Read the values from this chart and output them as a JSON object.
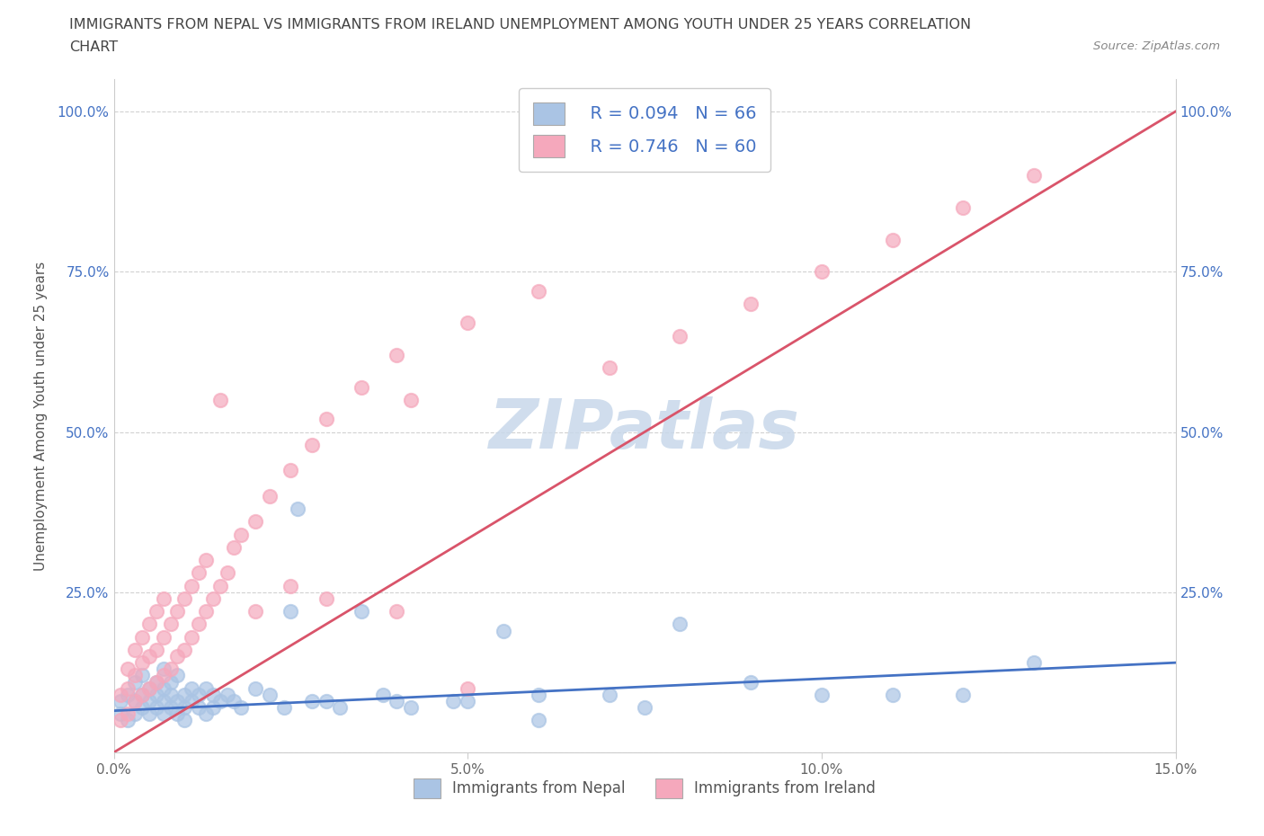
{
  "title_line1": "IMMIGRANTS FROM NEPAL VS IMMIGRANTS FROM IRELAND UNEMPLOYMENT AMONG YOUTH UNDER 25 YEARS CORRELATION",
  "title_line2": "CHART",
  "source_text": "Source: ZipAtlas.com",
  "ylabel": "Unemployment Among Youth under 25 years",
  "label_nepal": "Immigrants from Nepal",
  "label_ireland": "Immigrants from Ireland",
  "xlim": [
    0.0,
    0.15
  ],
  "ylim": [
    0.0,
    1.05
  ],
  "xticks": [
    0.0,
    0.05,
    0.1,
    0.15
  ],
  "xticklabels": [
    "0.0%",
    "5.0%",
    "10.0%",
    "15.0%"
  ],
  "yticks": [
    0.0,
    0.25,
    0.5,
    0.75,
    1.0
  ],
  "yticklabels": [
    "",
    "25.0%",
    "50.0%",
    "75.0%",
    "100.0%"
  ],
  "nepal_R": 0.094,
  "nepal_N": 66,
  "ireland_R": 0.746,
  "ireland_N": 60,
  "nepal_color": "#aac4e4",
  "ireland_color": "#f5a8bc",
  "nepal_line_color": "#4472c4",
  "ireland_line_color": "#d9546a",
  "watermark": "ZIPatlas",
  "watermark_color": "#c8d8ea",
  "nepal_x": [
    0.001,
    0.001,
    0.002,
    0.002,
    0.003,
    0.003,
    0.003,
    0.004,
    0.004,
    0.004,
    0.005,
    0.005,
    0.005,
    0.006,
    0.006,
    0.006,
    0.007,
    0.007,
    0.007,
    0.007,
    0.008,
    0.008,
    0.008,
    0.009,
    0.009,
    0.009,
    0.01,
    0.01,
    0.01,
    0.011,
    0.011,
    0.012,
    0.012,
    0.013,
    0.013,
    0.014,
    0.014,
    0.015,
    0.016,
    0.017,
    0.018,
    0.02,
    0.022,
    0.024,
    0.026,
    0.03,
    0.035,
    0.038,
    0.042,
    0.048,
    0.055,
    0.06,
    0.07,
    0.08,
    0.09,
    0.1,
    0.11,
    0.12,
    0.025,
    0.028,
    0.032,
    0.04,
    0.05,
    0.06,
    0.075,
    0.13
  ],
  "nepal_y": [
    0.06,
    0.08,
    0.05,
    0.09,
    0.06,
    0.08,
    0.11,
    0.07,
    0.09,
    0.12,
    0.06,
    0.08,
    0.1,
    0.07,
    0.09,
    0.11,
    0.06,
    0.08,
    0.1,
    0.13,
    0.07,
    0.09,
    0.11,
    0.06,
    0.08,
    0.12,
    0.07,
    0.09,
    0.05,
    0.08,
    0.1,
    0.07,
    0.09,
    0.06,
    0.1,
    0.07,
    0.09,
    0.08,
    0.09,
    0.08,
    0.07,
    0.1,
    0.09,
    0.07,
    0.38,
    0.08,
    0.22,
    0.09,
    0.07,
    0.08,
    0.19,
    0.09,
    0.09,
    0.2,
    0.11,
    0.09,
    0.09,
    0.09,
    0.22,
    0.08,
    0.07,
    0.08,
    0.08,
    0.05,
    0.07,
    0.14
  ],
  "ireland_x": [
    0.001,
    0.001,
    0.002,
    0.002,
    0.002,
    0.003,
    0.003,
    0.003,
    0.004,
    0.004,
    0.004,
    0.005,
    0.005,
    0.005,
    0.006,
    0.006,
    0.006,
    0.007,
    0.007,
    0.007,
    0.008,
    0.008,
    0.009,
    0.009,
    0.01,
    0.01,
    0.011,
    0.011,
    0.012,
    0.012,
    0.013,
    0.013,
    0.014,
    0.015,
    0.016,
    0.017,
    0.018,
    0.02,
    0.022,
    0.025,
    0.028,
    0.03,
    0.035,
    0.04,
    0.042,
    0.05,
    0.06,
    0.07,
    0.08,
    0.09,
    0.1,
    0.11,
    0.12,
    0.13,
    0.015,
    0.02,
    0.025,
    0.03,
    0.04,
    0.05
  ],
  "ireland_y": [
    0.05,
    0.09,
    0.06,
    0.1,
    0.13,
    0.08,
    0.12,
    0.16,
    0.09,
    0.14,
    0.18,
    0.1,
    0.15,
    0.2,
    0.11,
    0.16,
    0.22,
    0.12,
    0.18,
    0.24,
    0.13,
    0.2,
    0.15,
    0.22,
    0.16,
    0.24,
    0.18,
    0.26,
    0.2,
    0.28,
    0.22,
    0.3,
    0.24,
    0.26,
    0.28,
    0.32,
    0.34,
    0.36,
    0.4,
    0.44,
    0.48,
    0.52,
    0.57,
    0.62,
    0.55,
    0.67,
    0.72,
    0.6,
    0.65,
    0.7,
    0.75,
    0.8,
    0.85,
    0.9,
    0.55,
    0.22,
    0.26,
    0.24,
    0.22,
    0.1
  ],
  "ireland_line_x": [
    0.0,
    0.15
  ],
  "ireland_line_y": [
    0.0,
    1.0
  ],
  "nepal_line_x": [
    0.0,
    0.15
  ],
  "nepal_line_y": [
    0.065,
    0.14
  ]
}
